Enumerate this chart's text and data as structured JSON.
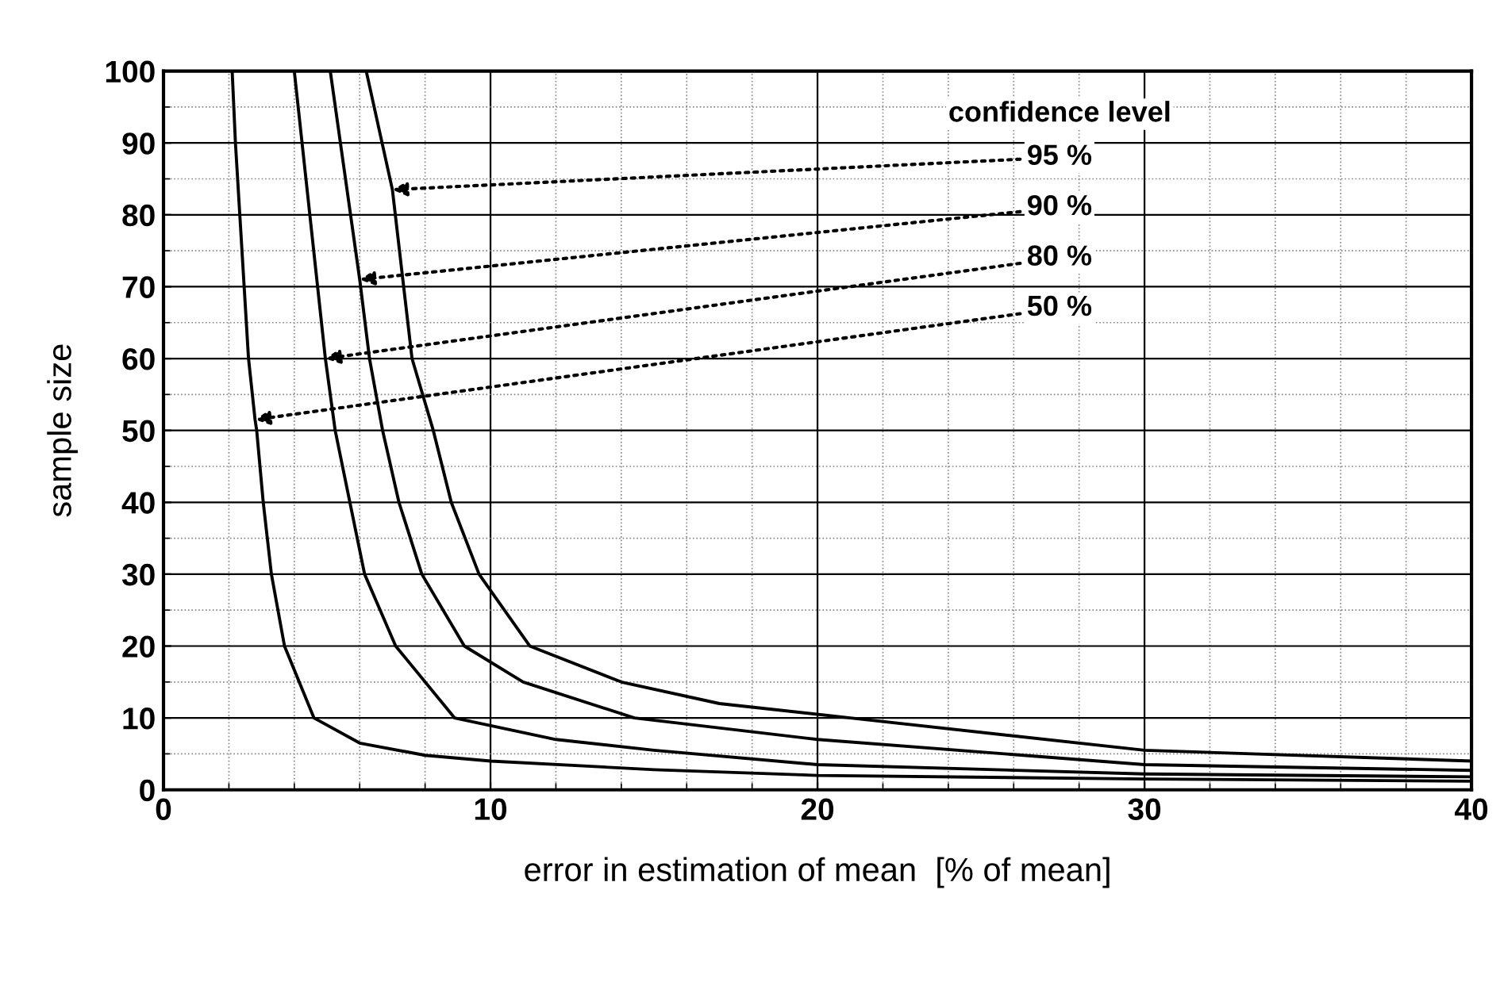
{
  "chart_data": {
    "type": "line",
    "xlabel": "error in estimation of mean  [% of mean]",
    "ylabel": "sample size",
    "legend_title": "confidence level",
    "series": [
      {
        "color": "#000000",
        "x": [
          2.1,
          2.2,
          2.6,
          2.8,
          2.85,
          3.05,
          3.3,
          3.7,
          4.6,
          6,
          8,
          10,
          15,
          20,
          30,
          40
        ],
        "values": [
          100,
          90,
          60,
          51.5,
          50,
          40,
          30,
          20,
          10,
          6.5,
          4.8,
          4,
          2.8,
          2,
          1.5,
          1.2
        ]
      },
      {
        "color": "#000000",
        "x": [
          4.0,
          4.95,
          5.25,
          5.7,
          6.15,
          7.1,
          8.9,
          12,
          15,
          20,
          30,
          40
        ],
        "values": [
          100,
          60,
          50,
          40,
          30,
          20,
          10,
          7,
          5.5,
          3.5,
          2.2,
          1.8
        ]
      },
      {
        "color": "#000000",
        "x": [
          5.1,
          6.0,
          6.3,
          6.7,
          7.2,
          7.9,
          9.2,
          11,
          14.4,
          20,
          30,
          40
        ],
        "values": [
          100,
          71,
          60,
          50,
          40,
          30,
          20,
          15,
          10,
          7,
          3.5,
          2.7
        ]
      },
      {
        "color": "#000000",
        "x": [
          6.2,
          7.0,
          7.6,
          8.25,
          8.8,
          9.65,
          11.2,
          14,
          17,
          21,
          30,
          40
        ],
        "values": [
          100,
          83.5,
          60,
          50,
          40,
          30,
          20,
          15,
          12,
          10,
          5.5,
          4
        ]
      }
    ],
    "annotations": [
      {
        "text": "95 %",
        "x": 7.0,
        "y": 83.5
      },
      {
        "text": "90 %",
        "x": 6.0,
        "y": 71
      },
      {
        "text": "80 %",
        "x": 4.95,
        "y": 60
      },
      {
        "text": "50 %",
        "x": 2.8,
        "y": 51.5
      }
    ],
    "xlim": [
      0,
      40
    ],
    "ylim": [
      0,
      100
    ],
    "xticks": [
      0,
      10,
      20,
      30,
      40
    ],
    "yticks": [
      0,
      10,
      20,
      30,
      40,
      50,
      60,
      70,
      80,
      90,
      100
    ],
    "grid": true,
    "marker": "none",
    "line_style": "solid"
  }
}
